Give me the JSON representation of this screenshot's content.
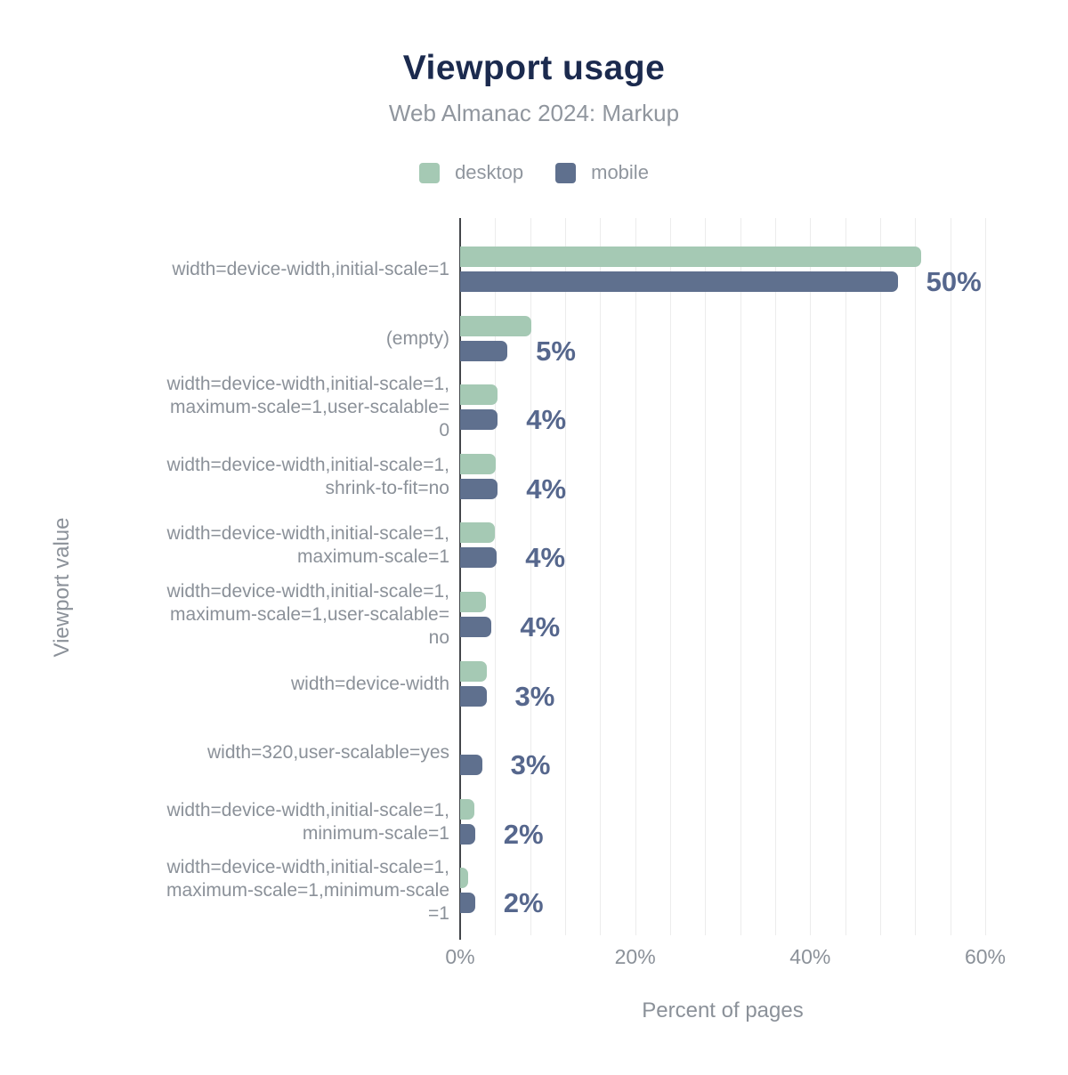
{
  "title": "Viewport usage",
  "subtitle": "Web Almanac 2024: Markup",
  "legend": [
    {
      "label": "desktop",
      "color": "#a5c9b4"
    },
    {
      "label": "mobile",
      "color": "#5f708e"
    }
  ],
  "colors": {
    "desktop_bar": "#a5c9b4",
    "mobile_bar": "#5f708e",
    "title_text": "#1b2a4e",
    "subtitle_text": "#90969e",
    "category_text": "#8b9199",
    "value_label_text": "#56678d",
    "gridline": "#ececec",
    "axis_line": "#43464a"
  },
  "chart_data": {
    "type": "bar",
    "orientation": "horizontal",
    "title": "Viewport usage",
    "subtitle": "Web Almanac 2024: Markup",
    "xlabel": "Percent of pages",
    "ylabel": "Viewport value",
    "xlim": [
      0,
      60
    ],
    "x_ticks": [
      {
        "value": 0,
        "label": "0%"
      },
      {
        "value": 20,
        "label": "20%"
      },
      {
        "value": 40,
        "label": "40%"
      },
      {
        "value": 60,
        "label": "60%"
      }
    ],
    "minor_grid_step_pct": 4,
    "grid": "vertical-minor",
    "legend_position": "top",
    "categories": [
      "width=device-width,initial-scale=1",
      "(empty)",
      "width=device-width,initial-scale=1,maximum-scale=1,user-scalable=0",
      "width=device-width,initial-scale=1,shrink-to-fit=no",
      "width=device-width,initial-scale=1,maximum-scale=1",
      "width=device-width,initial-scale=1,maximum-scale=1,user-scalable=no",
      "width=device-width",
      "width=320,user-scalable=yes",
      "width=device-width,initial-scale=1,minimum-scale=1",
      "width=device-width,initial-scale=1,maximum-scale=1,minimum-scale=1"
    ],
    "categories_wrapped": [
      "width=device-width,initial-scale=1",
      "(empty)",
      "width=device-width,initial-scale=1,\nmaximum-scale=1,user-scalable=\n0",
      "width=device-width,initial-scale=1,\nshrink-to-fit=no",
      "width=device-width,initial-scale=1,\nmaximum-scale=1",
      "width=device-width,initial-scale=1,\nmaximum-scale=1,user-scalable=\nno",
      "width=device-width",
      "width=320,user-scalable=yes",
      "width=device-width,initial-scale=1,\nminimum-scale=1",
      "width=device-width,initial-scale=1,\nmaximum-scale=1,minimum-scale\n=1"
    ],
    "series": [
      {
        "name": "desktop",
        "color": "#a5c9b4",
        "values": [
          52.7,
          8.1,
          4.3,
          4.1,
          4.0,
          2.9,
          3.0,
          0,
          1.6,
          0.9
        ]
      },
      {
        "name": "mobile",
        "color": "#5f708e",
        "values": [
          50.0,
          5.4,
          4.3,
          4.3,
          4.2,
          3.6,
          3.0,
          2.5,
          1.7,
          1.7
        ]
      }
    ],
    "bar_labels": [
      "50%",
      "5%",
      "4%",
      "4%",
      "4%",
      "4%",
      "3%",
      "3%",
      "2%",
      "2%"
    ]
  }
}
